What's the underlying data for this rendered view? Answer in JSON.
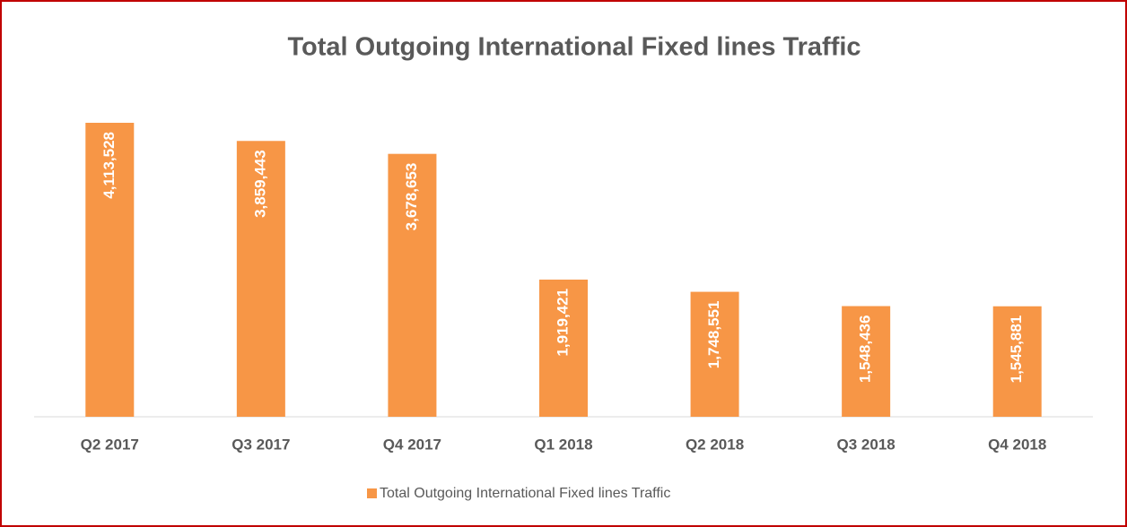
{
  "chart_data": {
    "type": "bar",
    "title": "Total Outgoing International Fixed lines Traffic",
    "categories": [
      "Q2 2017",
      "Q3 2017",
      "Q4 2017",
      "Q1 2018",
      "Q2 2018",
      "Q3 2018",
      "Q4 2018"
    ],
    "series": [
      {
        "name": "Total Outgoing International Fixed lines Traffic",
        "color": "#f79646",
        "values": [
          4113528,
          3859443,
          3678653,
          1919421,
          1748551,
          1548436,
          1545881
        ],
        "value_labels": [
          "4,113,528",
          "3,859,443",
          "3,678,653",
          "1,919,421",
          "1,748,551",
          "1,548,436",
          "1,545,881"
        ]
      }
    ]
  }
}
